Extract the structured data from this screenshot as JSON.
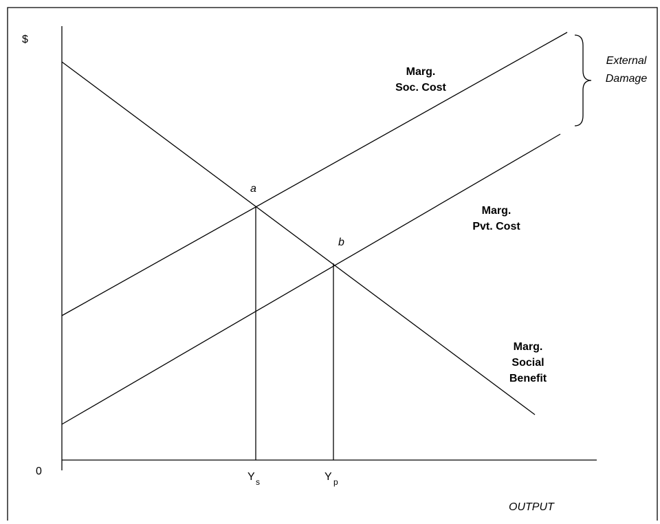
{
  "y_axis_label": "$",
  "origin_label": "0",
  "x_axis_label": "OUTPUT",
  "curves": {
    "mb": {
      "line1": "Marg.",
      "line2": "Social",
      "line3": "Benefit"
    },
    "msc": {
      "line1": "Marg.",
      "line2": "Soc. Cost"
    },
    "mpc": {
      "line1": "Marg.",
      "line2": "Pvt. Cost"
    }
  },
  "points": {
    "a": "a",
    "b": "b"
  },
  "ticks": {
    "ys": {
      "main": "Y",
      "sub": "s"
    },
    "yp": {
      "main": "Y",
      "sub": "p"
    }
  },
  "brace_label": {
    "line1": "External",
    "line2": "Damage"
  }
}
